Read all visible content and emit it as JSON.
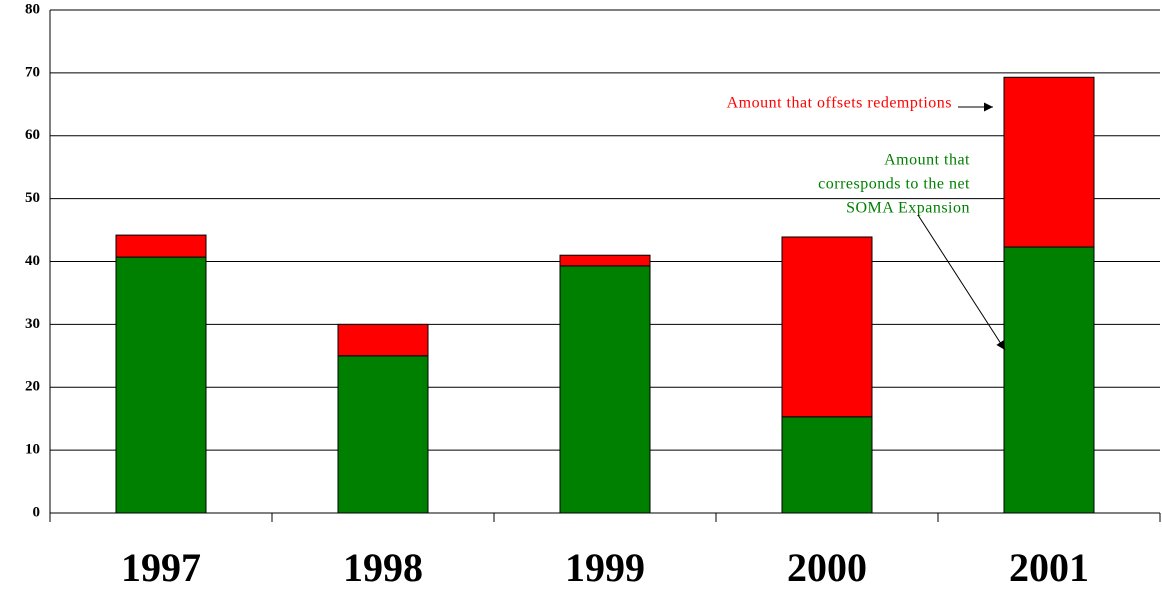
{
  "chart_data": {
    "type": "stacked-bar",
    "categories": [
      "1997",
      "1998",
      "1999",
      "2000",
      "2001"
    ],
    "series": [
      {
        "color": "#008000",
        "values": [
          40.7,
          25.0,
          39.3,
          15.3,
          42.3
        ]
      },
      {
        "color": "#ff0000",
        "values": [
          3.5,
          5.0,
          1.7,
          28.6,
          27.0
        ]
      }
    ],
    "ylim": [
      0,
      80
    ],
    "yticks": [
      0,
      10,
      20,
      30,
      40,
      50,
      60,
      70,
      80
    ],
    "grid": true,
    "annotations": [
      {
        "lines": [
          "Amount that offsets redemptions"
        ],
        "color": "#ff0000"
      },
      {
        "lines": [
          "Amount that",
          "corresponds to the net",
          "SOMA Expansion"
        ],
        "color": "#008000"
      }
    ]
  }
}
